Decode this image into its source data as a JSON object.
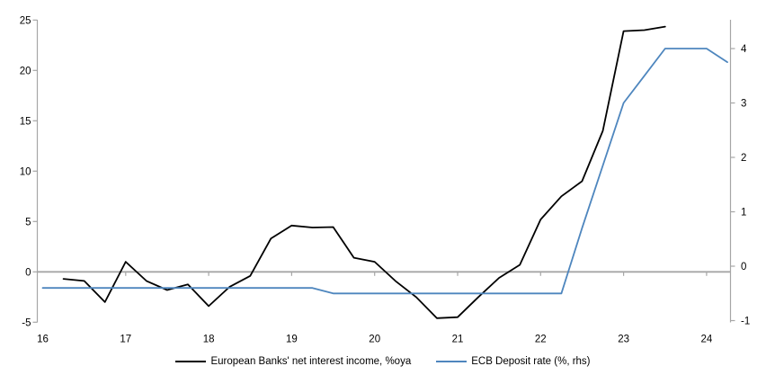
{
  "figure": {
    "background": "#ffffff"
  },
  "chart_data": {
    "type": "line",
    "title": "",
    "grid": "zero-line-only",
    "legend_position": "bottom",
    "axis_color": "#a6a6a6",
    "zero_line_color": "#a6a6a6",
    "x_axis": {
      "tick_labels": [
        "16",
        "17",
        "18",
        "19",
        "20",
        "21",
        "22",
        "23",
        "24"
      ],
      "tick_values": [
        16,
        17,
        18,
        19,
        20,
        21,
        22,
        23,
        24
      ],
      "range": [
        16,
        24.35
      ]
    },
    "y_axis_left": {
      "tick_labels": [
        "25",
        "20",
        "15",
        "10",
        "5",
        "0",
        "-5"
      ],
      "tick_values": [
        25,
        20,
        15,
        10,
        5,
        0,
        -5
      ],
      "range": [
        -5,
        25
      ]
    },
    "y_axis_right": {
      "tick_labels": [
        "4",
        "3",
        "2",
        "1",
        "0",
        "-1"
      ],
      "tick_values": [
        4,
        3,
        2,
        1,
        0,
        -1
      ],
      "range": [
        -1.05,
        4.55
      ]
    },
    "series": [
      {
        "name": "European Banks' net interest income, %oya",
        "axis": "left",
        "color": "#000000",
        "x": [
          16.25,
          16.5,
          16.75,
          17.0,
          17.25,
          17.5,
          17.75,
          18.0,
          18.25,
          18.5,
          18.75,
          19.0,
          19.25,
          19.5,
          19.75,
          20.0,
          20.25,
          20.5,
          20.75,
          21.0,
          21.25,
          21.5,
          21.75,
          22.0,
          22.25,
          22.5,
          22.75,
          23.0,
          23.25,
          23.5
        ],
        "values": [
          -0.7,
          -0.9,
          -3.0,
          1.0,
          -0.9,
          -1.8,
          -1.25,
          -3.4,
          -1.5,
          -0.4,
          3.3,
          4.6,
          4.4,
          4.45,
          1.4,
          1.0,
          -0.9,
          -2.5,
          -4.6,
          -4.5,
          -2.5,
          -0.6,
          0.7,
          5.2,
          7.5,
          9.0,
          14.0,
          23.9,
          24.0,
          24.35
        ]
      },
      {
        "name": "ECB Deposit rate (%, rhs)",
        "axis": "right",
        "color": "#4e86be",
        "x": [
          16.0,
          16.25,
          16.5,
          16.75,
          17.0,
          17.25,
          17.5,
          17.75,
          18.0,
          18.25,
          18.5,
          18.75,
          19.0,
          19.25,
          19.5,
          19.75,
          20.0,
          20.25,
          20.5,
          20.75,
          21.0,
          21.25,
          21.5,
          21.75,
          22.0,
          22.25,
          22.5,
          22.75,
          23.0,
          23.25,
          23.5,
          23.75,
          24.0,
          24.25
        ],
        "values": [
          -0.4,
          -0.4,
          -0.4,
          -0.4,
          -0.4,
          -0.4,
          -0.4,
          -0.4,
          -0.4,
          -0.4,
          -0.4,
          -0.4,
          -0.4,
          -0.4,
          -0.5,
          -0.5,
          -0.5,
          -0.5,
          -0.5,
          -0.5,
          -0.5,
          -0.5,
          -0.5,
          -0.5,
          -0.5,
          -0.5,
          0.7,
          1.85,
          3.0,
          3.5,
          4.0,
          4.0,
          4.0,
          3.75
        ]
      }
    ]
  },
  "legend": {
    "items": [
      {
        "label": "European Banks' net interest income, %oya",
        "color": "#000000"
      },
      {
        "label": "ECB Deposit rate (%, rhs)",
        "color": "#4e86be"
      }
    ]
  }
}
